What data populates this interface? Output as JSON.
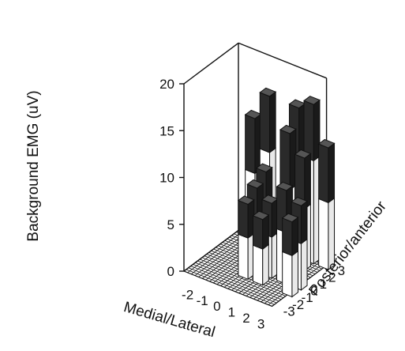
{
  "chart_data": {
    "type": "bar",
    "subtype": "3d-bar",
    "zlabel": "Background EMG (uV)",
    "xlabel": "Medial/Lateral",
    "ylabel": "Posterior/anterior",
    "xlim": [
      -3,
      3
    ],
    "ylim": [
      -3,
      3
    ],
    "zlim": [
      0,
      20
    ],
    "x_ticks": [
      "-2",
      "-1",
      "0",
      "1",
      "2",
      "3"
    ],
    "y_ticks": [
      "-3",
      "-2",
      "-1",
      "0",
      "1",
      "2",
      "3"
    ],
    "z_ticks": [
      "0",
      "5",
      "10",
      "15",
      "20"
    ],
    "grid": true,
    "colors": {
      "bar_top": "#2a2a2a",
      "bar_side": "#ffffff",
      "outline": "#111111"
    },
    "bars": [
      {
        "x": -2,
        "y": 3,
        "z": 13
      },
      {
        "x": -1,
        "y": 3,
        "z": 16
      },
      {
        "x": 1,
        "y": 3,
        "z": 16
      },
      {
        "x": 2,
        "y": 3,
        "z": 17
      },
      {
        "x": 3,
        "y": 3,
        "z": 13
      },
      {
        "x": 1,
        "y": 2,
        "z": 14
      },
      {
        "x": 2,
        "y": 2,
        "z": 12
      },
      {
        "x": 0,
        "y": 1,
        "z": 10
      },
      {
        "x": 0,
        "y": 0,
        "z": 9
      },
      {
        "x": 1,
        "y": 0,
        "z": 8
      },
      {
        "x": 2,
        "y": 0,
        "z": 10
      },
      {
        "x": 3,
        "y": 0,
        "z": 9
      },
      {
        "x": 3,
        "y": -1,
        "z": 8
      },
      {
        "x": 0,
        "y": -1,
        "z": 8
      },
      {
        "x": 1,
        "y": -1,
        "z": 7
      }
    ]
  }
}
